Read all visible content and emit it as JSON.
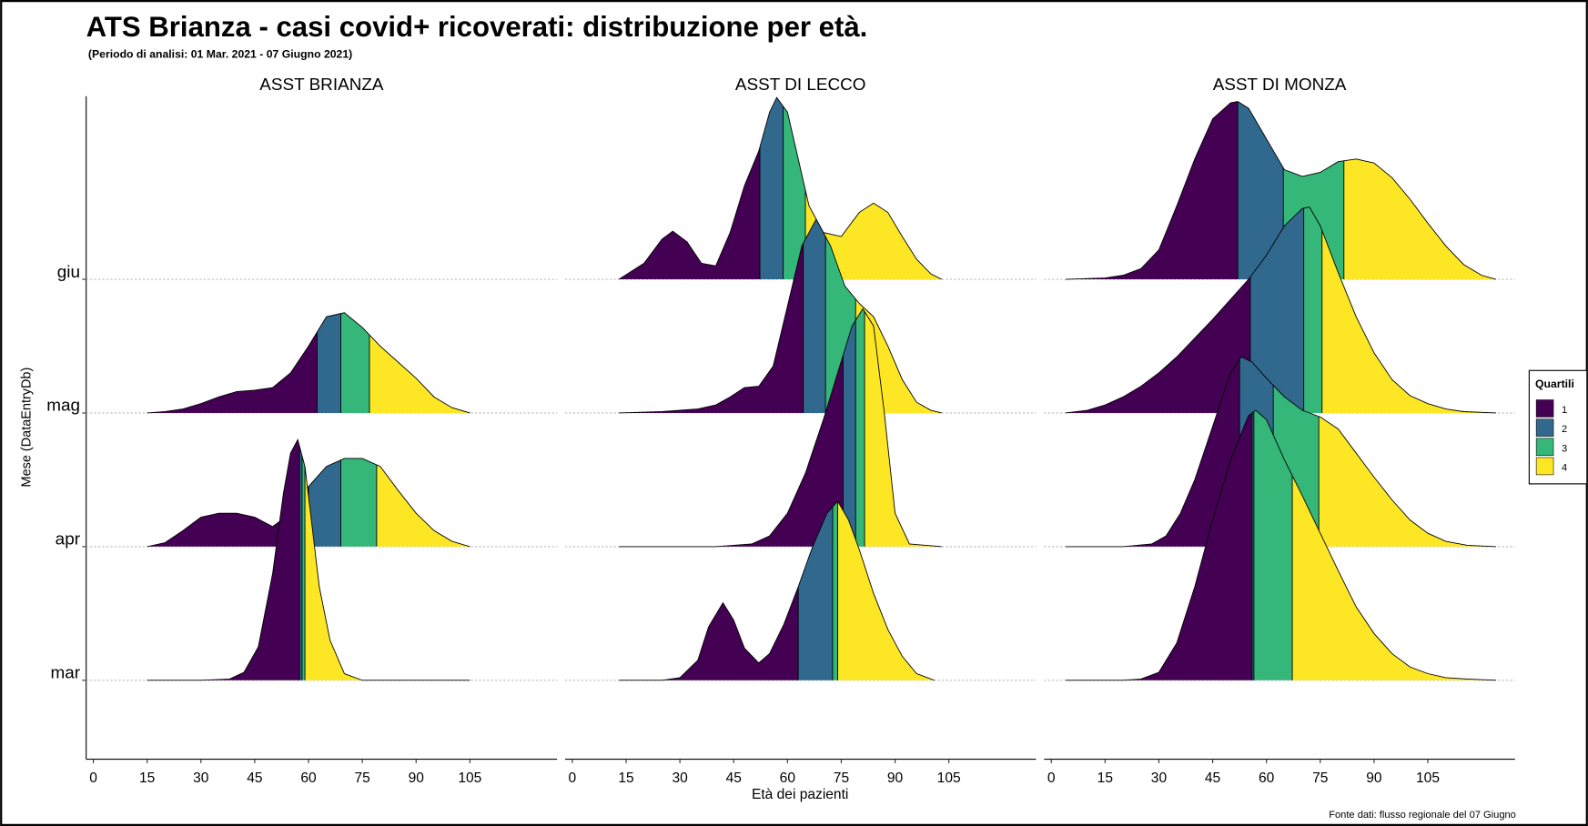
{
  "chart_data": {
    "type": "ridgeline",
    "title": "ATS Brianza - casi covid+ ricoverati: distribuzione per età.",
    "subtitle": "(Periodo di analisi: 01 Mar. 2021 - 07 Giugno 2021)",
    "y_label": "Mese (DataEntryDb)",
    "x_label": "Età dei pazienti",
    "source": "Fonte dati: flusso regionale del 07 Giugno",
    "legend": {
      "title": "Quartili",
      "entries": [
        "1",
        "2",
        "3",
        "4"
      ],
      "position": "right"
    },
    "quartile_colors": [
      "#440154",
      "#31688e",
      "#35b779",
      "#fde725"
    ],
    "xlim": [
      -2,
      129.3
    ],
    "xticks": [
      0,
      15,
      30,
      45,
      60,
      75,
      90,
      105
    ],
    "ylim": [
      0.41,
      5.37
    ],
    "yticks": [
      {
        "value": 1,
        "label": "mar"
      },
      {
        "value": 2,
        "label": "apr"
      },
      {
        "value": 3,
        "label": "mag"
      },
      {
        "value": 4,
        "label": "giu"
      }
    ],
    "grid": true,
    "panels": [
      {
        "title": "ASST BRIANZA",
        "ridges": [
          {
            "y": 3,
            "x": [
              15,
              20,
              25,
              30,
              35,
              40,
              45,
              50,
              55,
              60,
              65,
              70,
              75,
              80,
              85,
              90,
              95,
              100,
              105
            ],
            "heights": [
              0,
              0.01,
              0.03,
              0.07,
              0.12,
              0.16,
              0.17,
              0.19,
              0.3,
              0.5,
              0.72,
              0.75,
              0.64,
              0.5,
              0.38,
              0.26,
              0.12,
              0.04,
              0
            ],
            "quartiles": [
              62.4,
              69,
              77
            ]
          },
          {
            "y": 2,
            "x": [
              15,
              20,
              25,
              30,
              35,
              40,
              45,
              50,
              55,
              60,
              65,
              70,
              75,
              80,
              85,
              90,
              95,
              100,
              105
            ],
            "heights": [
              0,
              0.03,
              0.12,
              0.22,
              0.25,
              0.25,
              0.22,
              0.15,
              0.25,
              0.45,
              0.6,
              0.66,
              0.66,
              0.6,
              0.42,
              0.25,
              0.12,
              0.04,
              0
            ],
            "quartiles": [
              60,
              69,
              79
            ]
          },
          {
            "y": 1,
            "x": [
              15,
              30,
              38,
              42,
              46,
              50,
              53,
              55,
              57,
              59,
              61,
              63,
              66,
              70,
              75,
              105
            ],
            "heights": [
              0,
              0,
              0.01,
              0.06,
              0.25,
              0.8,
              1.4,
              1.7,
              1.8,
              1.6,
              1.15,
              0.7,
              0.3,
              0.05,
              0,
              0
            ],
            "quartiles": [
              57.5,
              58.2,
              59
            ]
          }
        ]
      },
      {
        "title": "ASST DI LECCO",
        "ridges": [
          {
            "y": 4,
            "x": [
              13,
              20,
              25,
              28,
              32,
              36,
              40,
              44,
              48,
              52,
              55,
              57,
              60,
              63,
              66,
              70,
              75,
              80,
              84,
              88,
              92,
              96,
              100,
              103
            ],
            "heights": [
              0,
              0.12,
              0.3,
              0.36,
              0.28,
              0.12,
              0.1,
              0.35,
              0.7,
              0.96,
              1.25,
              1.36,
              1.25,
              0.9,
              0.55,
              0.35,
              0.32,
              0.5,
              0.57,
              0.5,
              0.32,
              0.15,
              0.04,
              0
            ],
            "quartiles": [
              52.3,
              58.8,
              65
            ]
          },
          {
            "y": 3,
            "x": [
              13,
              25,
              35,
              40,
              44,
              48,
              52,
              56,
              60,
              64,
              68,
              72,
              76,
              80,
              84,
              88,
              92,
              96,
              100,
              103
            ],
            "heights": [
              0,
              0.01,
              0.03,
              0.06,
              0.12,
              0.19,
              0.2,
              0.35,
              0.8,
              1.25,
              1.45,
              1.25,
              0.95,
              0.82,
              0.72,
              0.5,
              0.25,
              0.08,
              0.02,
              0
            ],
            "quartiles": [
              64.4,
              70.6,
              79
            ]
          },
          {
            "y": 2,
            "x": [
              13,
              40,
              50,
              55,
              60,
              65,
              70,
              74,
              78,
              81,
              84,
              87,
              90,
              94,
              103
            ],
            "heights": [
              0,
              0,
              0.02,
              0.08,
              0.25,
              0.55,
              0.95,
              1.3,
              1.65,
              1.78,
              1.65,
              1.0,
              0.25,
              0.02,
              0
            ],
            "quartiles": [
              75.5,
              79,
              81.5
            ]
          },
          {
            "y": 1,
            "x": [
              13,
              25,
              30,
              35,
              38,
              42,
              45,
              48,
              52,
              55,
              59,
              63,
              67,
              71,
              74,
              77,
              80,
              84,
              88,
              92,
              96,
              101
            ],
            "heights": [
              0,
              0,
              0.02,
              0.15,
              0.4,
              0.58,
              0.45,
              0.24,
              0.13,
              0.2,
              0.42,
              0.7,
              1.0,
              1.25,
              1.34,
              1.2,
              0.98,
              0.65,
              0.38,
              0.18,
              0.05,
              0
            ],
            "quartiles": [
              63,
              72.6,
              74
            ]
          }
        ]
      },
      {
        "title": "ASST DI MONZA",
        "ridges": [
          {
            "y": 4,
            "x": [
              4,
              15,
              20,
              25,
              30,
              35,
              40,
              45,
              50,
              52,
              55,
              60,
              65,
              70,
              75,
              80,
              85,
              90,
              95,
              100,
              105,
              110,
              115,
              120,
              124
            ],
            "heights": [
              0,
              0.01,
              0.03,
              0.08,
              0.22,
              0.55,
              0.9,
              1.2,
              1.32,
              1.33,
              1.28,
              1.05,
              0.82,
              0.77,
              0.8,
              0.88,
              0.9,
              0.87,
              0.76,
              0.6,
              0.42,
              0.25,
              0.11,
              0.03,
              0
            ],
            "quartiles": [
              52,
              64.7,
              81.6
            ]
          },
          {
            "y": 3,
            "x": [
              4,
              10,
              15,
              20,
              25,
              30,
              35,
              40,
              45,
              50,
              55,
              60,
              65,
              70,
              72,
              75,
              80,
              85,
              90,
              95,
              100,
              105,
              110,
              115,
              124
            ],
            "heights": [
              0,
              0.02,
              0.06,
              0.12,
              0.2,
              0.3,
              0.42,
              0.56,
              0.7,
              0.85,
              1.0,
              1.18,
              1.4,
              1.53,
              1.54,
              1.4,
              1.05,
              0.72,
              0.45,
              0.25,
              0.13,
              0.07,
              0.03,
              0.01,
              0
            ],
            "quartiles": [
              55.5,
              70.4,
              75.5
            ]
          },
          {
            "y": 2,
            "x": [
              4,
              20,
              28,
              32,
              36,
              40,
              45,
              50,
              53,
              56,
              60,
              65,
              70,
              75,
              80,
              85,
              90,
              95,
              100,
              105,
              110,
              116,
              124
            ],
            "heights": [
              0,
              0,
              0.02,
              0.08,
              0.25,
              0.5,
              0.9,
              1.3,
              1.42,
              1.38,
              1.26,
              1.12,
              1.02,
              0.97,
              0.88,
              0.7,
              0.52,
              0.35,
              0.2,
              0.1,
              0.04,
              0.01,
              0
            ],
            "quartiles": [
              52.5,
              61.9,
              74.6
            ]
          },
          {
            "y": 1,
            "x": [
              4,
              20,
              25,
              30,
              35,
              40,
              45,
              50,
              55,
              57,
              60,
              65,
              70,
              75,
              80,
              85,
              90,
              95,
              100,
              105,
              110,
              116,
              124
            ],
            "heights": [
              0,
              0,
              0.01,
              0.06,
              0.28,
              0.7,
              1.2,
              1.65,
              1.98,
              2.02,
              1.95,
              1.65,
              1.38,
              1.1,
              0.82,
              0.55,
              0.35,
              0.2,
              0.1,
              0.05,
              0.02,
              0.01,
              0
            ],
            "quartiles": [
              56,
              56.5,
              67.2
            ]
          }
        ]
      }
    ]
  }
}
